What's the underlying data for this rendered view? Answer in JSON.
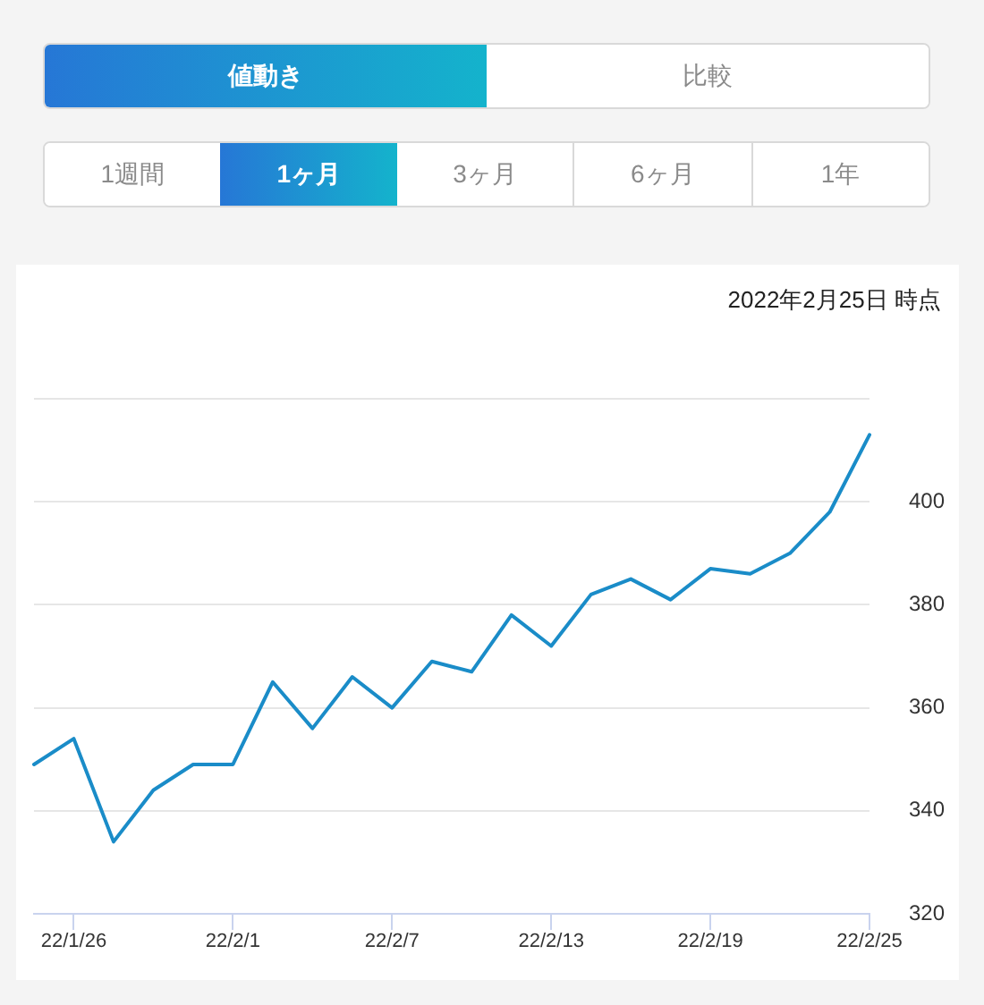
{
  "chart_data": {
    "type": "line",
    "annotations": [
      "値動き",
      "比較",
      "1週間",
      "1ヶ月",
      "3ヶ月",
      "6ヶ月",
      "1年",
      "2022年2月25日 時点"
    ],
    "categories": [
      null,
      "22/1/26",
      null,
      null,
      null,
      "22/2/1",
      null,
      null,
      null,
      "22/2/7",
      null,
      null,
      null,
      "22/2/13",
      null,
      null,
      null,
      "22/2/19",
      null,
      null,
      null,
      "22/2/25"
    ],
    "values": [
      349,
      354,
      334,
      344,
      349,
      349,
      365,
      356,
      366,
      360,
      369,
      367,
      378,
      372,
      382,
      385,
      381,
      387,
      386,
      390,
      398,
      413
    ],
    "color": "#1a8cc8",
    "ylim": [
      320,
      420
    ],
    "yticks": [
      320,
      340,
      360,
      380,
      400,
      {
        "value": 420,
        "label": null
      }
    ],
    "grid": "y",
    "marker": "none",
    "line_style": "solid"
  }
}
